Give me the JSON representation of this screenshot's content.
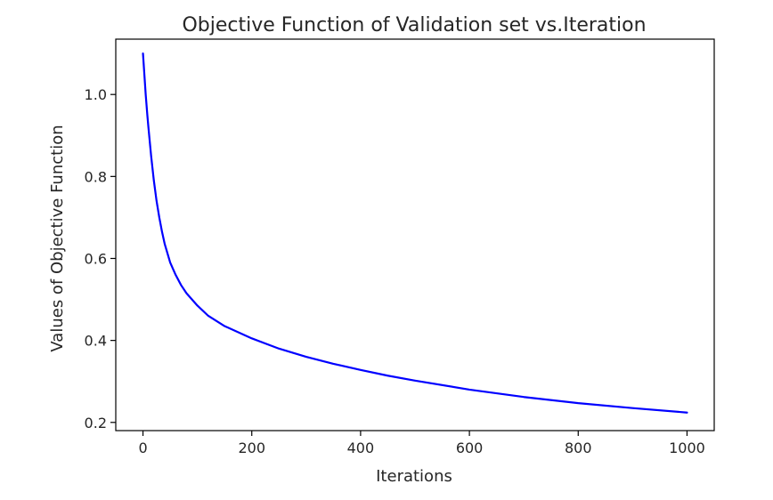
{
  "chart_data": {
    "type": "line",
    "title": "Objective Function of Validation set vs.Iteration",
    "xlabel": "Iterations",
    "ylabel": "Values of Objective Function",
    "xlim": [
      -50,
      1050
    ],
    "ylim": [
      0.18,
      1.135
    ],
    "xticks": [
      0,
      200,
      400,
      600,
      800,
      1000
    ],
    "xtick_labels": [
      "0",
      "200",
      "400",
      "600",
      "800",
      "1000"
    ],
    "yticks": [
      0.2,
      0.4,
      0.6,
      0.8,
      1.0
    ],
    "ytick_labels": [
      "0.2",
      "0.4",
      "0.6",
      "0.8",
      "1.0"
    ],
    "grid": false,
    "series": [
      {
        "color": "#0000ff",
        "x": [
          0,
          2,
          5,
          8,
          10,
          15,
          20,
          25,
          30,
          35,
          40,
          50,
          60,
          70,
          80,
          100,
          120,
          150,
          200,
          250,
          300,
          350,
          400,
          450,
          500,
          600,
          700,
          800,
          900,
          1000
        ],
        "y": [
          1.1,
          1.06,
          1.0,
          0.95,
          0.92,
          0.85,
          0.79,
          0.74,
          0.7,
          0.665,
          0.635,
          0.59,
          0.56,
          0.535,
          0.515,
          0.485,
          0.46,
          0.435,
          0.405,
          0.38,
          0.36,
          0.343,
          0.328,
          0.314,
          0.302,
          0.28,
          0.262,
          0.247,
          0.235,
          0.224
        ]
      }
    ]
  }
}
